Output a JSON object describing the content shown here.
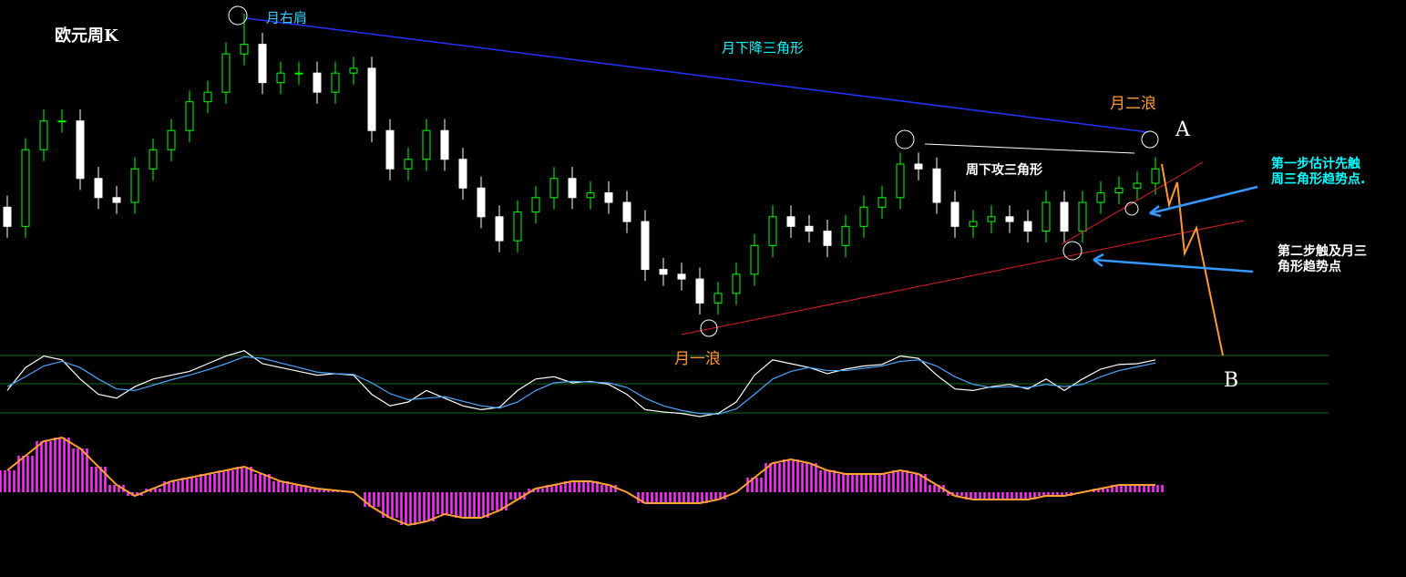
{
  "chart_data": [
    {
      "type": "candlestick",
      "title": "欧元周K",
      "up_color": "#00ff00",
      "down_color": "#ffffff",
      "open": [
        1.23,
        1.21,
        1.29,
        1.32,
        1.32,
        1.26,
        1.24,
        1.235,
        1.27,
        1.29,
        1.31,
        1.34,
        1.35,
        1.39,
        1.4,
        1.36,
        1.37,
        1.37,
        1.35,
        1.37,
        1.375,
        1.31,
        1.27,
        1.28,
        1.31,
        1.28,
        1.25,
        1.22,
        1.195,
        1.225,
        1.24,
        1.26,
        1.24,
        1.245,
        1.235,
        1.215,
        1.165,
        1.16,
        1.155,
        1.13,
        1.14,
        1.16,
        1.19,
        1.22,
        1.21,
        1.205,
        1.19,
        1.21,
        1.23,
        1.24,
        1.275,
        1.27,
        1.235,
        1.21,
        1.215,
        1.22,
        1.215,
        1.205,
        1.235,
        1.205,
        1.235,
        1.245,
        1.25,
        1.255
      ],
      "high": [
        1.242,
        1.302,
        1.332,
        1.332,
        1.332,
        1.272,
        1.252,
        1.282,
        1.302,
        1.322,
        1.352,
        1.362,
        1.402,
        1.432,
        1.412,
        1.382,
        1.382,
        1.382,
        1.382,
        1.387,
        1.387,
        1.322,
        1.292,
        1.322,
        1.322,
        1.292,
        1.262,
        1.232,
        1.237,
        1.252,
        1.272,
        1.272,
        1.257,
        1.257,
        1.247,
        1.227,
        1.177,
        1.172,
        1.167,
        1.152,
        1.172,
        1.202,
        1.232,
        1.232,
        1.222,
        1.217,
        1.222,
        1.242,
        1.252,
        1.287,
        1.287,
        1.282,
        1.247,
        1.227,
        1.232,
        1.232,
        1.227,
        1.247,
        1.247,
        1.247,
        1.257,
        1.262,
        1.267,
        1.282
      ],
      "low": [
        1.198,
        1.198,
        1.278,
        1.308,
        1.248,
        1.228,
        1.223,
        1.223,
        1.258,
        1.278,
        1.298,
        1.328,
        1.338,
        1.378,
        1.348,
        1.348,
        1.358,
        1.338,
        1.338,
        1.358,
        1.298,
        1.258,
        1.258,
        1.268,
        1.268,
        1.238,
        1.208,
        1.183,
        1.183,
        1.213,
        1.228,
        1.228,
        1.228,
        1.223,
        1.203,
        1.153,
        1.148,
        1.143,
        1.118,
        1.118,
        1.128,
        1.148,
        1.178,
        1.198,
        1.193,
        1.178,
        1.178,
        1.198,
        1.218,
        1.228,
        1.258,
        1.223,
        1.198,
        1.198,
        1.203,
        1.203,
        1.193,
        1.193,
        1.193,
        1.193,
        1.223,
        1.233,
        1.238,
        1.243
      ],
      "close": [
        1.21,
        1.29,
        1.32,
        1.32,
        1.26,
        1.24,
        1.235,
        1.27,
        1.29,
        1.31,
        1.34,
        1.35,
        1.39,
        1.4,
        1.36,
        1.37,
        1.37,
        1.35,
        1.37,
        1.375,
        1.31,
        1.27,
        1.28,
        1.31,
        1.28,
        1.25,
        1.22,
        1.195,
        1.225,
        1.24,
        1.26,
        1.24,
        1.245,
        1.235,
        1.215,
        1.165,
        1.16,
        1.155,
        1.13,
        1.14,
        1.16,
        1.19,
        1.22,
        1.21,
        1.205,
        1.19,
        1.21,
        1.23,
        1.24,
        1.275,
        1.27,
        1.235,
        1.21,
        1.215,
        1.22,
        1.215,
        1.205,
        1.235,
        1.205,
        1.235,
        1.245,
        1.25,
        1.255,
        1.27
      ]
    },
    {
      "type": "line",
      "ylim": [
        0,
        100
      ],
      "series": [
        {
          "color": "#ffffff",
          "values": [
            40,
            70,
            85,
            80,
            55,
            35,
            30,
            45,
            55,
            60,
            65,
            75,
            85,
            92,
            75,
            70,
            65,
            60,
            62,
            60,
            35,
            20,
            25,
            40,
            30,
            20,
            15,
            18,
            40,
            55,
            58,
            50,
            52,
            48,
            35,
            15,
            12,
            10,
            6,
            10,
            25,
            60,
            80,
            75,
            70,
            62,
            68,
            72,
            74,
            85,
            82,
            60,
            42,
            40,
            45,
            48,
            42,
            55,
            40,
            55,
            68,
            74,
            75,
            80
          ]
        },
        {
          "color": "#4da6ff",
          "values": [
            45,
            58,
            72,
            78,
            70,
            55,
            42,
            40,
            47,
            54,
            60,
            67,
            75,
            84,
            82,
            76,
            70,
            64,
            62,
            61,
            50,
            36,
            28,
            30,
            32,
            26,
            20,
            17,
            25,
            40,
            50,
            52,
            51,
            50,
            44,
            30,
            20,
            14,
            10,
            9,
            16,
            35,
            55,
            65,
            70,
            66,
            66,
            69,
            72,
            78,
            80,
            72,
            58,
            48,
            44,
            45,
            44,
            48,
            45,
            48,
            58,
            66,
            71,
            76
          ]
        }
      ]
    },
    {
      "type": "bar",
      "color": "#ff33ff",
      "line_color": "#ffa030",
      "values": [
        0.6,
        1.0,
        1.4,
        1.5,
        1.2,
        0.7,
        0.2,
        -0.1,
        0.1,
        0.3,
        0.4,
        0.5,
        0.6,
        0.7,
        0.5,
        0.3,
        0.2,
        0.1,
        0.05,
        0.0,
        -0.4,
        -0.7,
        -0.9,
        -0.8,
        -0.6,
        -0.7,
        -0.7,
        -0.5,
        -0.2,
        0.1,
        0.2,
        0.3,
        0.3,
        0.2,
        0.0,
        -0.3,
        -0.3,
        -0.3,
        -0.3,
        -0.2,
        0.0,
        0.4,
        0.8,
        0.9,
        0.8,
        0.6,
        0.5,
        0.5,
        0.5,
        0.6,
        0.5,
        0.2,
        -0.1,
        -0.2,
        -0.2,
        -0.2,
        -0.2,
        -0.1,
        -0.1,
        0.0,
        0.1,
        0.2,
        0.2,
        0.2
      ]
    }
  ],
  "annotations": {
    "right_shoulder": "月右肩",
    "monthly_triangle": "月下降三角形",
    "wave_two": "月二浪",
    "point_a": "A",
    "weekly_triangle": "周下攻三角形",
    "step_one": [
      "第一步估计先触",
      "周三角形趋势点."
    ],
    "step_two": [
      "第二步触及月三",
      "角形趋势点"
    ],
    "wave_one": "月一浪",
    "point_b": "B"
  }
}
